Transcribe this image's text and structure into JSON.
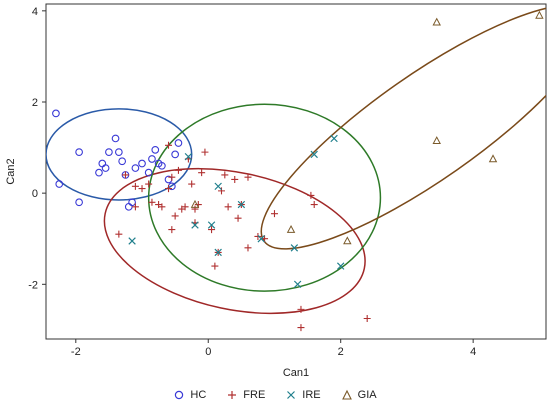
{
  "chart_data": {
    "type": "scatter",
    "xlabel": "Can1",
    "ylabel": "Can2",
    "xlim": [
      -2.45,
      5.1
    ],
    "ylim": [
      -3.2,
      4.15
    ],
    "xticks": [
      -2,
      0,
      2,
      4
    ],
    "yticks": [
      -2,
      0,
      2,
      4
    ],
    "legend_position": "bottom",
    "series": [
      {
        "name": "HC",
        "marker": "circle",
        "color": "#3a3ad6",
        "points": [
          [
            -2.3,
            1.75
          ],
          [
            -2.25,
            0.2
          ],
          [
            -1.95,
            0.9
          ],
          [
            -1.95,
            -0.2
          ],
          [
            -1.65,
            0.45
          ],
          [
            -1.6,
            0.65
          ],
          [
            -1.55,
            0.55
          ],
          [
            -1.5,
            0.9
          ],
          [
            -1.4,
            1.2
          ],
          [
            -1.35,
            0.9
          ],
          [
            -1.3,
            0.7
          ],
          [
            -1.25,
            0.4
          ],
          [
            -1.2,
            -0.3
          ],
          [
            -1.15,
            -0.2
          ],
          [
            -1.1,
            0.55
          ],
          [
            -1.0,
            0.65
          ],
          [
            -0.9,
            0.45
          ],
          [
            -0.85,
            0.75
          ],
          [
            -0.8,
            0.95
          ],
          [
            -0.75,
            0.65
          ],
          [
            -0.7,
            0.6
          ],
          [
            -0.6,
            0.3
          ],
          [
            -0.55,
            0.15
          ],
          [
            -0.5,
            0.85
          ],
          [
            -0.45,
            1.1
          ]
        ]
      },
      {
        "name": "FRE",
        "marker": "plus",
        "color": "#b03030",
        "points": [
          [
            -1.35,
            -0.9
          ],
          [
            -1.25,
            0.4
          ],
          [
            -1.1,
            -0.3
          ],
          [
            -1.1,
            0.15
          ],
          [
            -1.0,
            0.1
          ],
          [
            -0.9,
            0.2
          ],
          [
            -0.85,
            -0.2
          ],
          [
            -0.75,
            -0.25
          ],
          [
            -0.7,
            -0.3
          ],
          [
            -0.6,
            0.1
          ],
          [
            -0.55,
            -0.8
          ],
          [
            -0.55,
            0.35
          ],
          [
            -0.5,
            -0.5
          ],
          [
            -0.45,
            0.5
          ],
          [
            -0.35,
            -0.3
          ],
          [
            -0.3,
            0.75
          ],
          [
            -0.25,
            0.2
          ],
          [
            -0.2,
            -0.35
          ],
          [
            -0.2,
            -0.65
          ],
          [
            -0.15,
            -0.25
          ],
          [
            -0.1,
            0.45
          ],
          [
            -0.05,
            0.9
          ],
          [
            0.05,
            -0.8
          ],
          [
            0.1,
            -1.6
          ],
          [
            0.15,
            -1.3
          ],
          [
            0.2,
            0.05
          ],
          [
            0.25,
            0.4
          ],
          [
            0.3,
            -0.3
          ],
          [
            0.4,
            0.3
          ],
          [
            0.45,
            -0.55
          ],
          [
            0.5,
            -0.25
          ],
          [
            0.6,
            0.35
          ],
          [
            0.6,
            -1.2
          ],
          [
            0.75,
            -0.95
          ],
          [
            0.85,
            -1.0
          ],
          [
            1.0,
            -0.45
          ],
          [
            1.55,
            -0.05
          ],
          [
            1.6,
            -0.25
          ],
          [
            1.4,
            -2.55
          ],
          [
            1.4,
            -2.95
          ],
          [
            2.4,
            -2.75
          ],
          [
            -0.6,
            1.05
          ],
          [
            -0.4,
            -0.35
          ]
        ]
      },
      {
        "name": "IRE",
        "marker": "x",
        "color": "#1f7f8c",
        "points": [
          [
            -1.15,
            -1.05
          ],
          [
            -0.3,
            0.8
          ],
          [
            0.05,
            -0.7
          ],
          [
            0.15,
            0.15
          ],
          [
            0.15,
            -1.3
          ],
          [
            0.5,
            -0.25
          ],
          [
            0.8,
            -1.0
          ],
          [
            1.3,
            -1.2
          ],
          [
            1.35,
            -2.0
          ],
          [
            1.6,
            0.85
          ],
          [
            1.9,
            1.2
          ],
          [
            2.0,
            -1.6
          ],
          [
            -0.2,
            -0.7
          ]
        ]
      },
      {
        "name": "GIA",
        "marker": "triangle",
        "color": "#7a5a2a",
        "points": [
          [
            -0.2,
            -0.25
          ],
          [
            1.25,
            -0.8
          ],
          [
            2.1,
            -1.05
          ],
          [
            3.45,
            3.75
          ],
          [
            3.45,
            1.15
          ],
          [
            4.3,
            0.75
          ],
          [
            5.0,
            3.9
          ]
        ]
      }
    ],
    "ellipses": [
      {
        "name": "HC",
        "color": "#2a5aa8",
        "center": [
          -1.35,
          0.85
        ],
        "rx": 1.1,
        "ry": 1.0,
        "angle": 0
      },
      {
        "name": "FRE",
        "color": "#a02828",
        "center": [
          0.4,
          -1.05
        ],
        "rx": 2.0,
        "ry": 1.5,
        "angle": -12
      },
      {
        "name": "IRE",
        "color": "#2e7a28",
        "center": [
          0.85,
          -0.1
        ],
        "rx": 1.75,
        "ry": 2.05,
        "angle": 0
      },
      {
        "name": "GIA",
        "color": "#7a4a1a",
        "center": [
          3.3,
          1.45
        ],
        "rx": 3.0,
        "ry": 1.15,
        "angle": 35
      }
    ]
  },
  "legend": {
    "items": [
      {
        "label": "HC",
        "marker": "circle",
        "color": "#3a3ad6"
      },
      {
        "label": "FRE",
        "marker": "plus",
        "color": "#b03030"
      },
      {
        "label": "IRE",
        "marker": "x",
        "color": "#1f7f8c"
      },
      {
        "label": "GIA",
        "marker": "triangle",
        "color": "#7a5a2a"
      }
    ]
  }
}
